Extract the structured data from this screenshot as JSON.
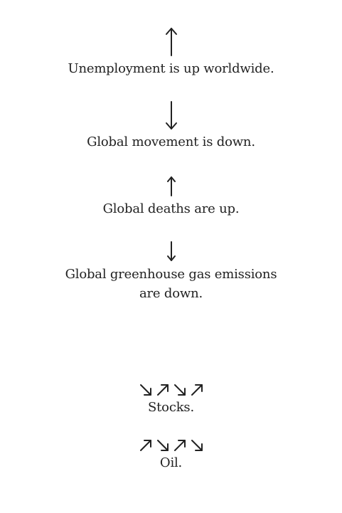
{
  "items": [
    {
      "direction": "up",
      "caption": "Unemployment is up worldwide."
    },
    {
      "direction": "down",
      "caption": "Global movement is down."
    },
    {
      "direction": "up",
      "caption": "Global deaths are up."
    },
    {
      "direction": "down",
      "caption": "Global greenhouse gas emissions are down."
    }
  ],
  "trends": [
    {
      "arrows": [
        "down-right",
        "up-right",
        "down-right",
        "up-right"
      ],
      "caption": "Stocks."
    },
    {
      "arrows": [
        "up-right",
        "down-right",
        "up-right",
        "down-right"
      ],
      "caption": "Oil."
    }
  ]
}
